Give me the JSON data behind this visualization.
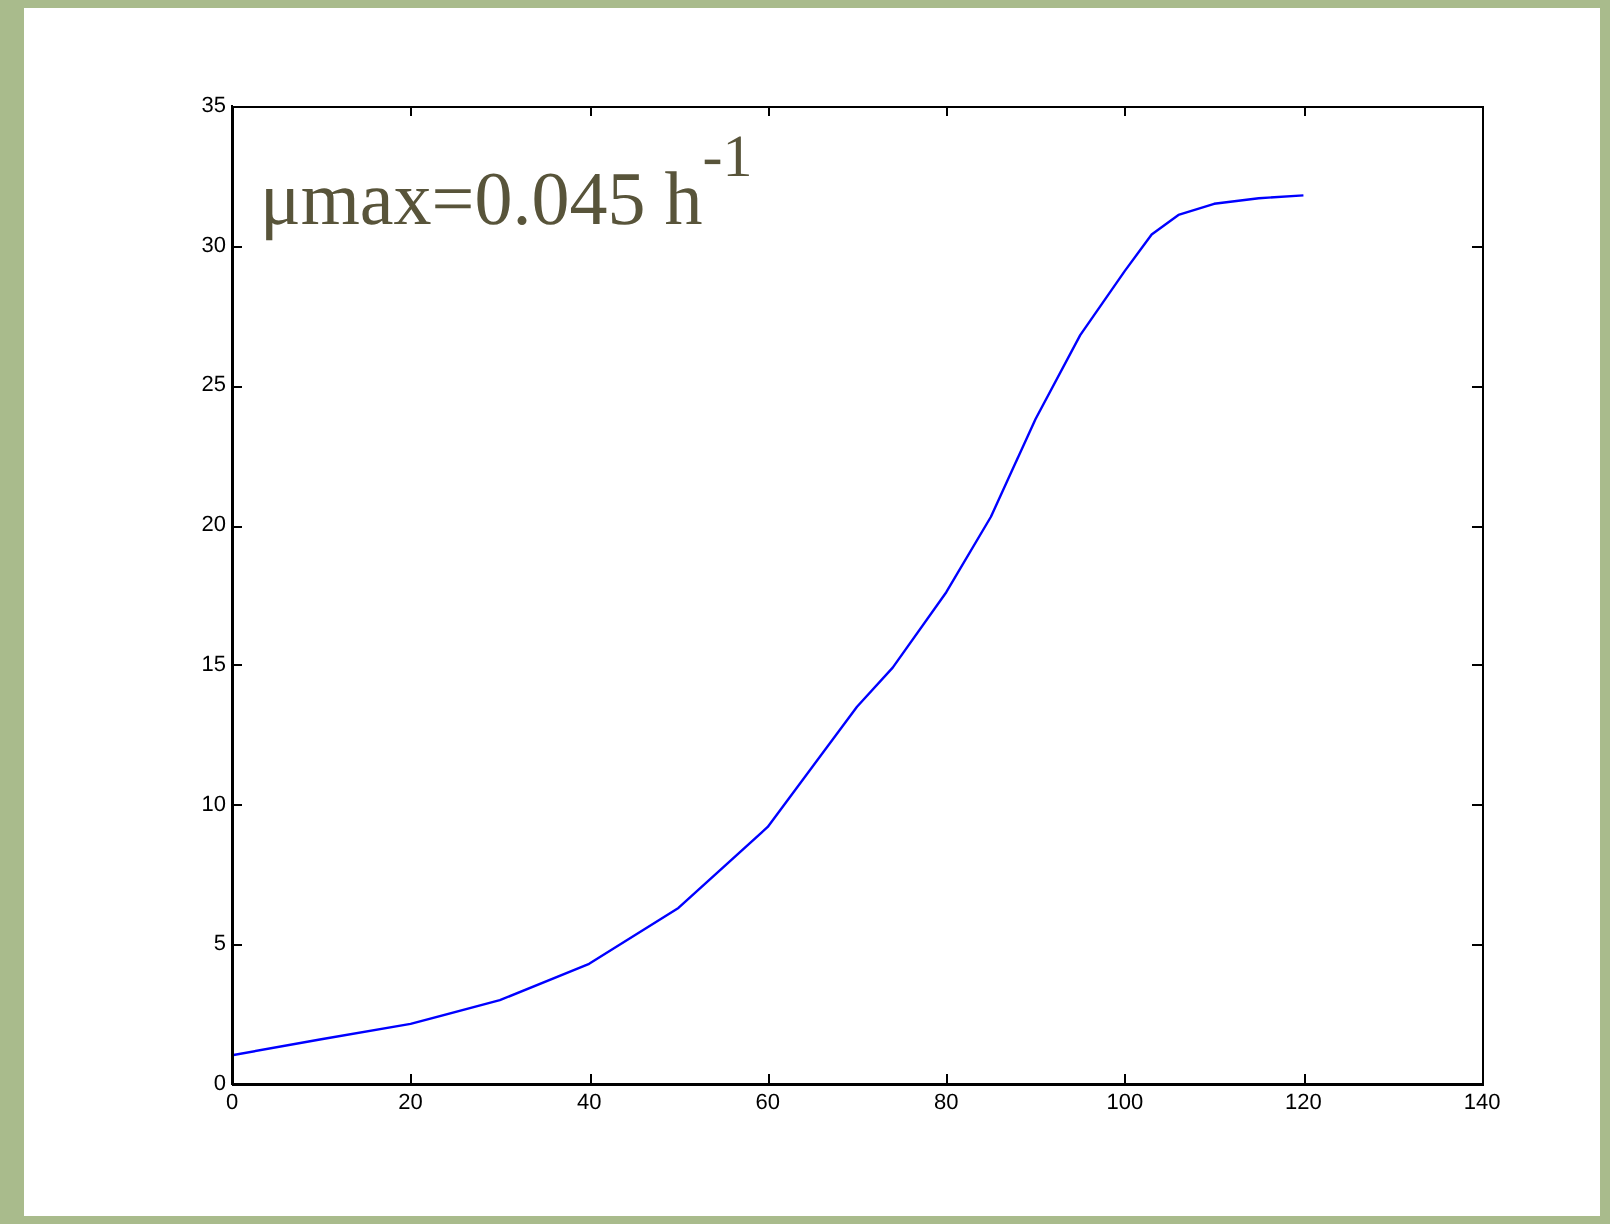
{
  "chart_data": {
    "type": "line",
    "x": [
      0,
      10,
      20,
      30,
      40,
      50,
      60,
      70,
      74,
      80,
      85,
      90,
      95,
      100,
      103,
      106,
      110,
      115,
      120
    ],
    "series": [
      {
        "color": "#0000ff",
        "values": [
          1.03,
          1.6,
          2.15,
          3.0,
          4.3,
          6.3,
          9.2,
          13.5,
          14.9,
          17.6,
          20.3,
          23.8,
          26.8,
          29.1,
          30.4,
          31.1,
          31.5,
          31.7,
          31.8
        ]
      }
    ],
    "xlim": [
      0,
      140
    ],
    "xticks": [
      0,
      20,
      40,
      60,
      80,
      100,
      120,
      140
    ],
    "ylim": [
      0,
      35
    ],
    "yticks": [
      0,
      5,
      10,
      15,
      20,
      25,
      30,
      35
    ],
    "grid": false,
    "legend": false,
    "marker": "none",
    "line_style": "solid",
    "annotations": [
      "μmax=0.045 h$^{-1}$"
    ]
  }
}
